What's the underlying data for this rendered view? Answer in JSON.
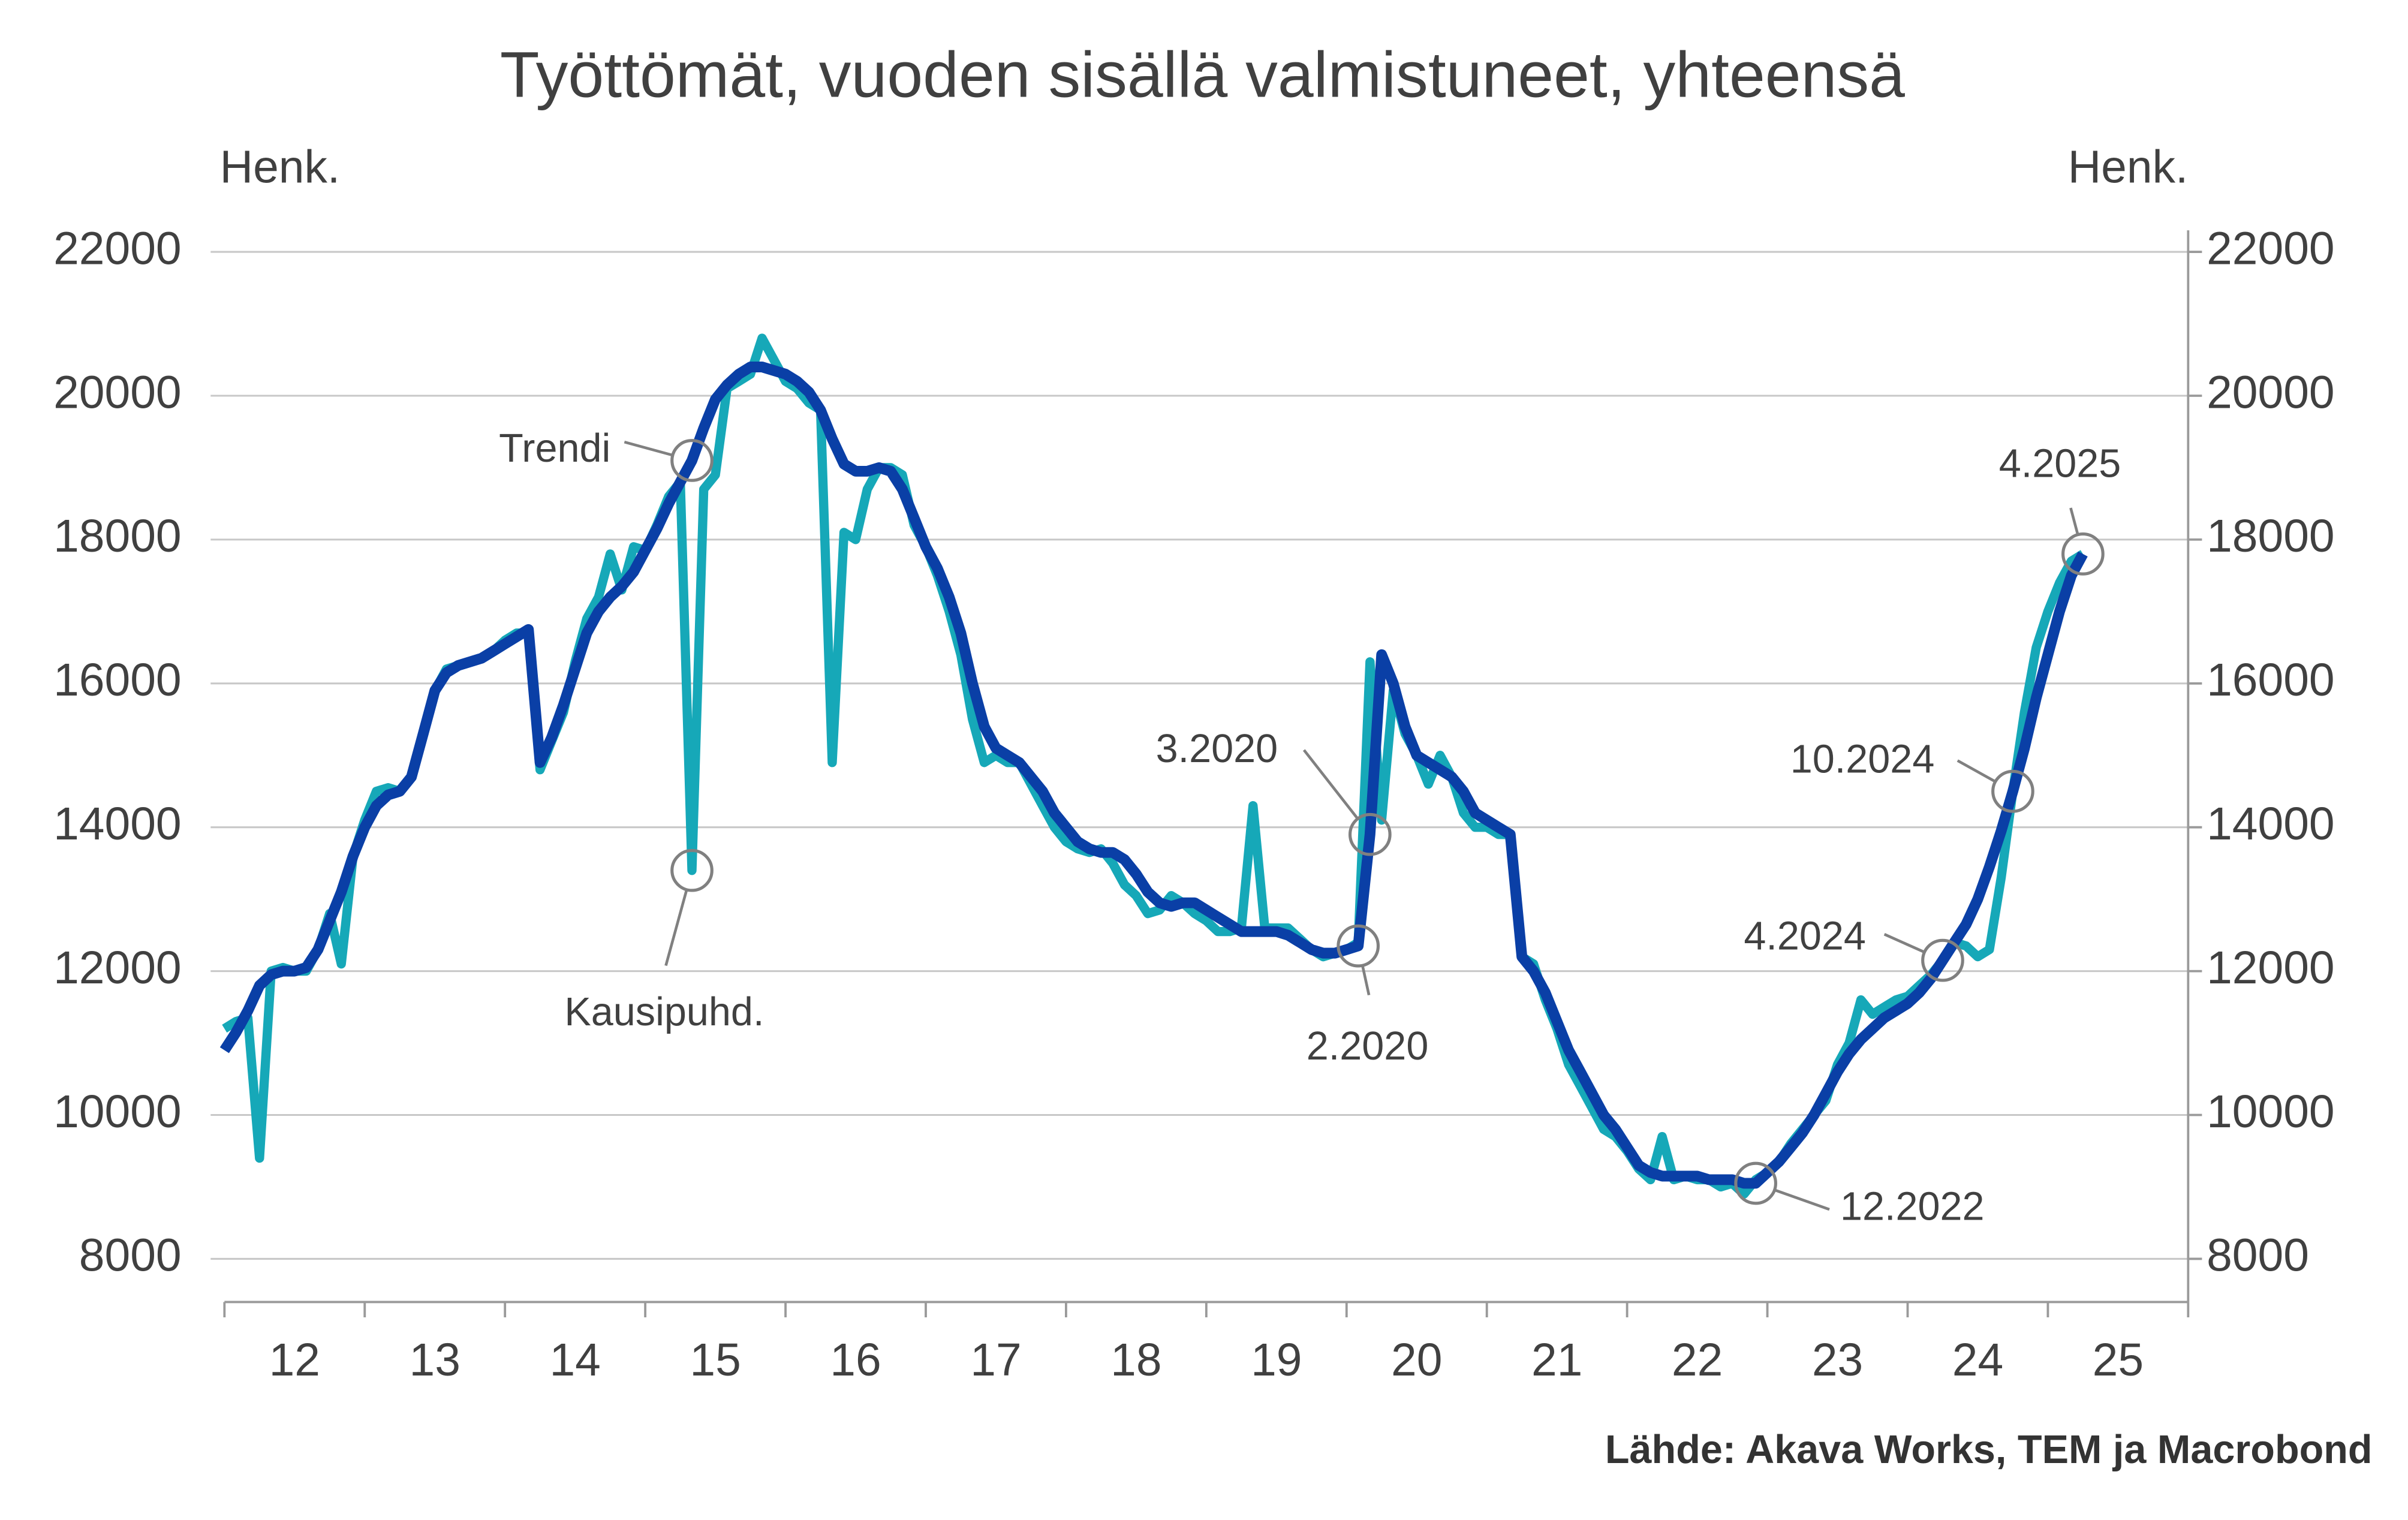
{
  "chart_data": {
    "type": "line",
    "title": "Työttömät, vuoden sisällä valmistuneet, yhteensä",
    "ylabel": "Henk.",
    "y2label": "Henk.",
    "source": "Lähde: Akava Works, TEM ja Macrobond",
    "xlim": [
      12,
      26
    ],
    "xticks": [
      {
        "value": 12,
        "label": "12"
      },
      {
        "value": 13,
        "label": "13"
      },
      {
        "value": 14,
        "label": "14"
      },
      {
        "value": 15,
        "label": "15"
      },
      {
        "value": 16,
        "label": "16"
      },
      {
        "value": 17,
        "label": "17"
      },
      {
        "value": 18,
        "label": "18"
      },
      {
        "value": 19,
        "label": "19"
      },
      {
        "value": 20,
        "label": "20"
      },
      {
        "value": 21,
        "label": "21"
      },
      {
        "value": 22,
        "label": "22"
      },
      {
        "value": 23,
        "label": "23"
      },
      {
        "value": 24,
        "label": "24"
      },
      {
        "value": 25,
        "label": "25"
      }
    ],
    "ylim": [
      7400,
      22300
    ],
    "yticks": [
      8000,
      10000,
      12000,
      14000,
      16000,
      18000,
      20000,
      22000
    ],
    "y2lim": [
      7400,
      22300
    ],
    "y2ticks": [
      8000,
      10000,
      12000,
      14000,
      16000,
      18000,
      20000,
      22000
    ],
    "grid": true,
    "x": [
      12,
      12.083,
      12.167,
      12.25,
      12.333,
      12.417,
      12.5,
      12.583,
      12.667,
      12.75,
      12.833,
      12.917,
      13,
      13.083,
      13.167,
      13.25,
      13.333,
      13.417,
      13.5,
      13.583,
      13.667,
      13.75,
      13.833,
      13.917,
      14,
      14.083,
      14.167,
      14.25,
      14.333,
      14.417,
      14.5,
      14.583,
      14.667,
      14.75,
      14.833,
      14.917,
      15,
      15.083,
      15.167,
      15.25,
      15.333,
      15.417,
      15.5,
      15.583,
      15.667,
      15.75,
      15.833,
      15.917,
      16,
      16.083,
      16.167,
      16.25,
      16.333,
      16.417,
      16.5,
      16.583,
      16.667,
      16.75,
      16.833,
      16.917,
      17,
      17.083,
      17.167,
      17.25,
      17.333,
      17.417,
      17.5,
      17.583,
      17.667,
      17.75,
      17.833,
      17.917,
      18,
      18.083,
      18.167,
      18.25,
      18.333,
      18.417,
      18.5,
      18.583,
      18.667,
      18.75,
      18.833,
      18.917,
      19,
      19.083,
      19.167,
      19.25,
      19.333,
      19.417,
      19.5,
      19.583,
      19.667,
      19.75,
      19.833,
      19.917,
      20,
      20.083,
      20.167,
      20.25,
      20.333,
      20.417,
      20.5,
      20.583,
      20.667,
      20.75,
      20.833,
      20.917,
      21,
      21.083,
      21.167,
      21.25,
      21.333,
      21.417,
      21.5,
      21.583,
      21.667,
      21.75,
      21.833,
      21.917,
      22,
      22.083,
      22.167,
      22.25,
      22.333,
      22.417,
      22.5,
      22.583,
      22.667,
      22.75,
      22.833,
      22.917,
      23,
      23.083,
      23.167,
      23.25,
      23.333,
      23.417,
      23.5,
      23.583,
      23.667,
      23.75,
      23.833,
      23.917,
      24,
      24.083,
      24.167,
      24.25,
      24.333,
      24.417,
      24.5,
      24.583,
      24.667,
      24.75,
      24.833,
      24.917,
      25,
      25.083,
      25.167,
      25.25
    ],
    "series": [
      {
        "color": "#16a8b8",
        "width": 6,
        "values": [
          11200,
          11300,
          11350,
          9400,
          12000,
          12050,
          12000,
          12000,
          12300,
          12800,
          12100,
          13600,
          14100,
          14500,
          14550,
          14500,
          14700,
          15300,
          15900,
          16200,
          16250,
          16300,
          16350,
          16450,
          16600,
          16700,
          16700,
          14800,
          15200,
          15600,
          16300,
          16900,
          17200,
          17800,
          17300,
          17900,
          17850,
          18200,
          18600,
          18800,
          13400,
          18700,
          18900,
          20100,
          20200,
          20300,
          20800,
          20500,
          20200,
          20100,
          19900,
          19800,
          14900,
          18100,
          18000,
          18700,
          19000,
          19000,
          18900,
          18200,
          17900,
          17500,
          17000,
          16400,
          15500,
          14900,
          15000,
          14900,
          14900,
          14600,
          14300,
          14000,
          13800,
          13700,
          13650,
          13700,
          13500,
          13200,
          13050,
          12800,
          12850,
          13050,
          12950,
          12800,
          12700,
          12550,
          12550,
          12600,
          14300,
          12600,
          12600,
          12600,
          12450,
          12300,
          12200,
          12250,
          12300,
          12400,
          16300,
          14100,
          15900,
          15300,
          15000,
          14600,
          15000,
          14700,
          14200,
          14000,
          14000,
          13900,
          13900,
          12200,
          12100,
          11600,
          11200,
          10700,
          10400,
          10100,
          9800,
          9700,
          9500,
          9250,
          9100,
          9700,
          9100,
          9150,
          9100,
          9100,
          9000,
          9050,
          8900,
          9100,
          9200,
          9350,
          9600,
          9800,
          10000,
          10200,
          10700,
          11000,
          11600,
          11400,
          11500,
          11600,
          11650,
          11800,
          11950,
          12150,
          12400,
          12350,
          12200,
          12300,
          13300,
          14500,
          15600,
          16500,
          17000,
          17400,
          17700,
          17800
        ]
      },
      {
        "color": "#0a3fa6",
        "width": 7,
        "values": [
          10900,
          11150,
          11450,
          11800,
          11950,
          12000,
          12000,
          12050,
          12300,
          12700,
          13100,
          13600,
          14000,
          14300,
          14450,
          14500,
          14700,
          15300,
          15900,
          16150,
          16250,
          16300,
          16350,
          16450,
          16550,
          16650,
          16750,
          14900,
          15250,
          15700,
          16200,
          16700,
          17000,
          17200,
          17350,
          17550,
          17850,
          18150,
          18500,
          18800,
          19100,
          19550,
          19950,
          20150,
          20300,
          20400,
          20400,
          20350,
          20300,
          20200,
          20050,
          19800,
          19400,
          19050,
          18950,
          18950,
          19000,
          18950,
          18700,
          18300,
          17900,
          17600,
          17200,
          16700,
          16000,
          15400,
          15100,
          15000,
          14900,
          14700,
          14500,
          14200,
          14000,
          13800,
          13700,
          13650,
          13650,
          13550,
          13350,
          13100,
          12950,
          12900,
          12950,
          12950,
          12850,
          12750,
          12650,
          12550,
          12550,
          12550,
          12550,
          12500,
          12400,
          12300,
          12250,
          12250,
          12300,
          12350,
          13900,
          16400,
          16000,
          15400,
          15000,
          14900,
          14800,
          14700,
          14500,
          14200,
          14100,
          14000,
          13900,
          12200,
          12000,
          11700,
          11300,
          10900,
          10600,
          10300,
          10000,
          9800,
          9550,
          9300,
          9200,
          9150,
          9150,
          9150,
          9150,
          9100,
          9100,
          9100,
          9050,
          9050,
          9200,
          9350,
          9550,
          9750,
          10000,
          10300,
          10600,
          10850,
          11050,
          11200,
          11350,
          11450,
          11550,
          11700,
          11900,
          12150,
          12400,
          12650,
          13000,
          13450,
          13950,
          14500,
          15100,
          15800,
          16400,
          17000,
          17500,
          17800
        ]
      }
    ],
    "annotations": [
      {
        "text": "Trendi",
        "x": 15.333,
        "y": 19100
      },
      {
        "text": "Kausipuhd.",
        "x": 15.333,
        "y": 13400
      },
      {
        "text": "3.2020",
        "x": 20.167,
        "y": 13900
      },
      {
        "text": "2.2020",
        "x": 20.083,
        "y": 12350
      },
      {
        "text": "12.2022",
        "x": 22.917,
        "y": 9050
      },
      {
        "text": "4.2024",
        "x": 24.25,
        "y": 12150
      },
      {
        "text": "10.2024",
        "x": 24.75,
        "y": 14500
      },
      {
        "text": "4.2025",
        "x": 25.25,
        "y": 17800
      }
    ]
  }
}
